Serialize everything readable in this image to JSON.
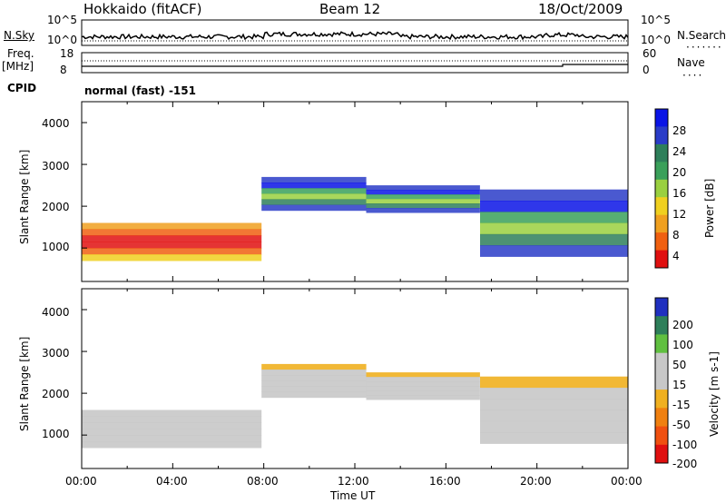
{
  "header": {
    "station": "Hokkaido (fitACF)",
    "beam": "Beam 12",
    "date": "18/Oct/2009"
  },
  "top_panel": {
    "nsky_label": "N.Sky",
    "nsearch_label": "N.Search",
    "left_ticks": [
      "10^5",
      "10^0"
    ],
    "right_ticks": [
      "10^5",
      "10^0"
    ],
    "freq_label_1": "Freq.",
    "freq_label_2": "[MHz]",
    "freq_ticks": [
      "18",
      "8"
    ],
    "nave_label": "Nave",
    "nave_ticks": [
      "60",
      "0"
    ],
    "cpid_label": "CPID",
    "cpid_text": "normal (fast) -151"
  },
  "colors": {
    "power_scale": [
      "#0a14e6",
      "#2a3cc8",
      "#2e7f5a",
      "#3aa05a",
      "#9ad040",
      "#f0d020",
      "#f0a020",
      "#f06010",
      "#e01010"
    ],
    "velocity_scale": [
      "#2030c0",
      "#2e7f5a",
      "#60c040",
      "#c8c8c8",
      "#c8c8c8",
      "#f0b020",
      "#f08010",
      "#f05010",
      "#e01010"
    ]
  },
  "chart_data": [
    {
      "type": "heatmap",
      "name": "Power panel",
      "ylabel": "Slant Range [km]",
      "ylim": [
        200,
        4500
      ],
      "yticks": [
        "4000",
        "3000",
        "2000",
        "1000"
      ],
      "xlabel": "Time UT",
      "xticks": [
        "00:00",
        "04:00",
        "08:00",
        "12:00",
        "16:00",
        "20:00",
        "00:00"
      ],
      "colorbar_label": "Power [dB]",
      "colorbar_ticks": [
        "28",
        "24",
        "20",
        "16",
        "12",
        "8",
        "4"
      ],
      "echo_bands_hours_km": [
        {
          "start": 0.0,
          "end": 7.9,
          "from_km": 700,
          "to_km": 1600,
          "level": "high"
        },
        {
          "start": 7.9,
          "end": 12.5,
          "from_km": 1900,
          "to_km": 2700,
          "level": "mid"
        },
        {
          "start": 12.5,
          "end": 17.5,
          "from_km": 1850,
          "to_km": 2500,
          "level": "mid"
        },
        {
          "start": 17.5,
          "end": 24.0,
          "from_km": 800,
          "to_km": 2400,
          "level": "mid"
        }
      ]
    },
    {
      "type": "heatmap",
      "name": "Velocity panel",
      "ylabel": "Slant Range [km]",
      "ylim": [
        200,
        4500
      ],
      "yticks": [
        "4000",
        "3000",
        "2000",
        "1000"
      ],
      "xlabel": "Time UT",
      "xticks": [
        "00:00",
        "04:00",
        "08:00",
        "12:00",
        "16:00",
        "20:00",
        "00:00"
      ],
      "colorbar_label": "Velocity [m s-1]",
      "colorbar_ticks": [
        "200",
        "100",
        "50",
        "15",
        "-15",
        "-50",
        "-100",
        "-200"
      ]
    }
  ]
}
